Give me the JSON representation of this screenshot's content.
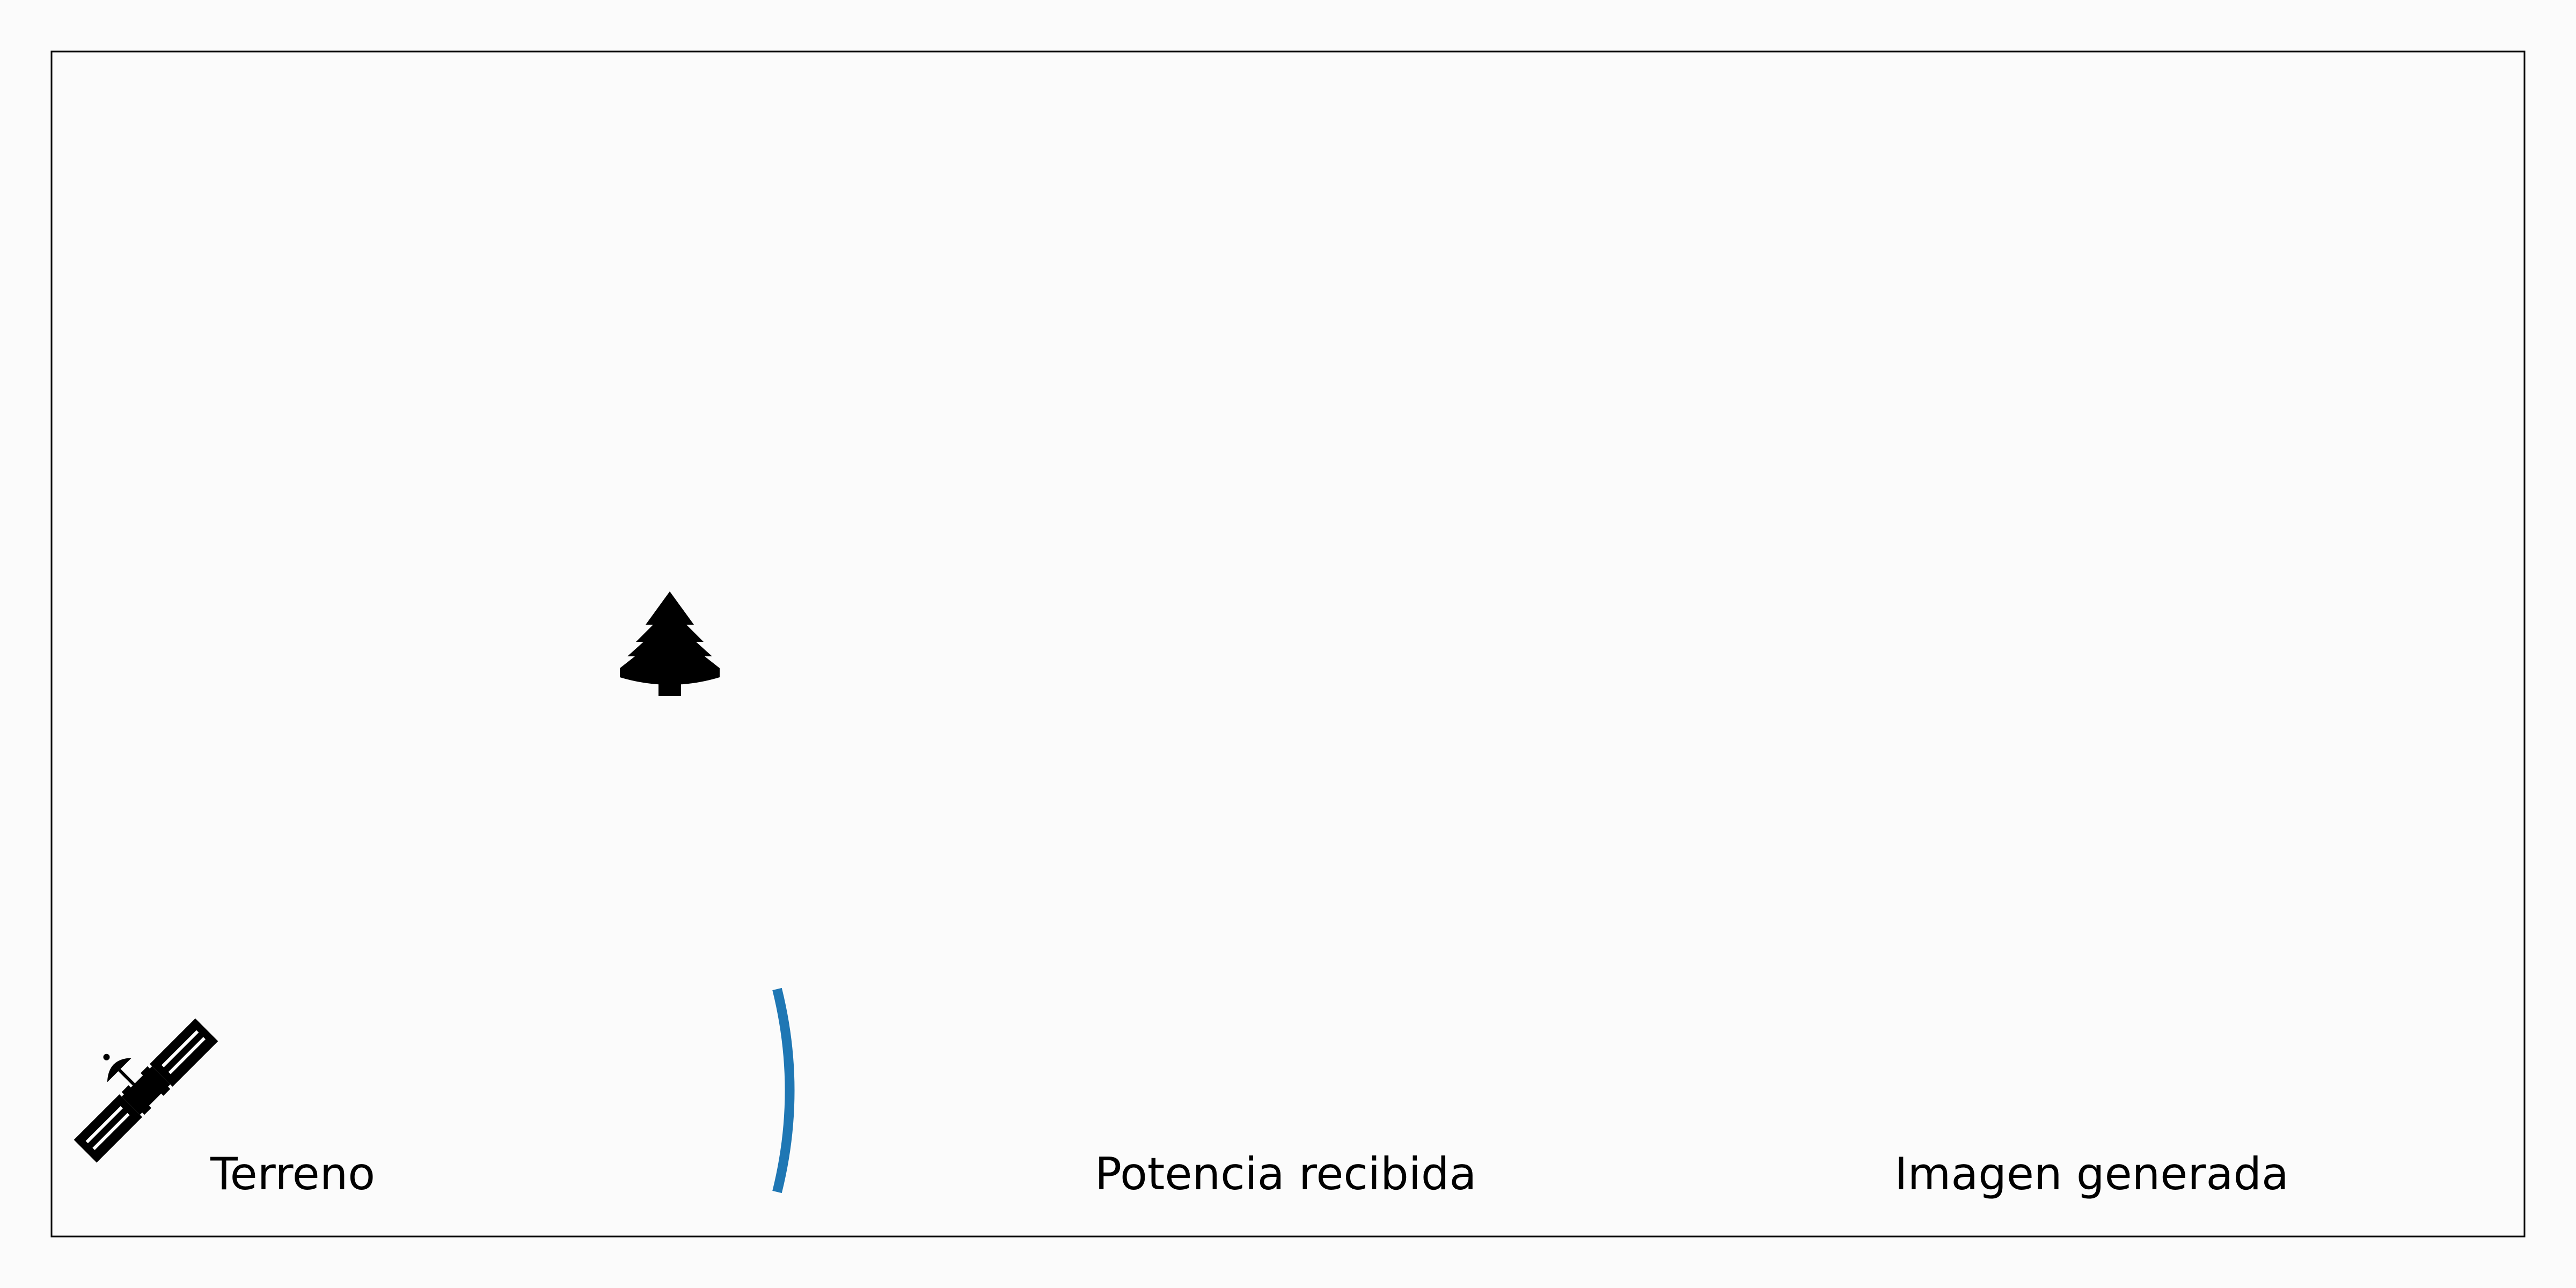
{
  "labels": {
    "terrain": "Terreno",
    "received_power": "Potencia recibida",
    "generated_image": "Imagen generada"
  },
  "icons": {
    "satellite": "satellite-icon",
    "tree": "tree-icon"
  },
  "colors": {
    "background": "#fbfbfb",
    "frame": "#000000",
    "wavefront": "#1f77b4",
    "icon": "#000000"
  }
}
